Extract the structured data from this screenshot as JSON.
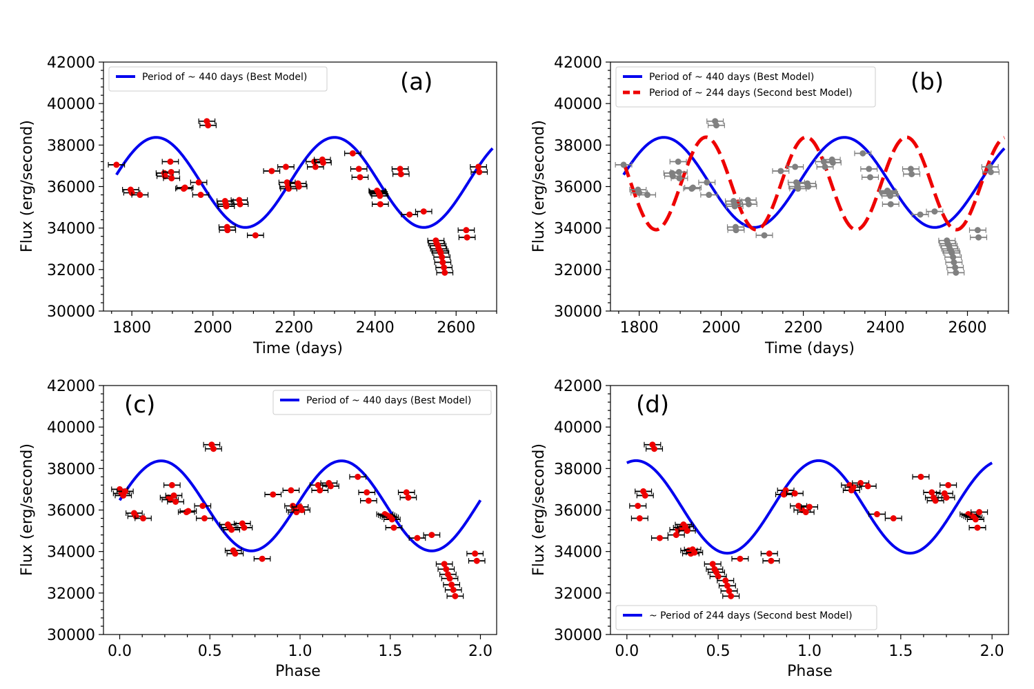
{
  "chart_data": [
    {
      "panel": "a",
      "tag": "(a)",
      "type": "scatter",
      "xlabel": "Time (days)",
      "ylabel": "Flux (erg/second)",
      "xlim": [
        1730,
        2700
      ],
      "ylim": [
        30000,
        42000
      ],
      "xticks": [
        1800,
        2000,
        2200,
        2400,
        2600
      ],
      "yticks": [
        30000,
        32000,
        34000,
        36000,
        38000,
        40000,
        42000
      ],
      "tick_labels_x": [
        "1800",
        "2000",
        "2200",
        "2400",
        "2600"
      ],
      "tick_labels_y": [
        "30000",
        "32000",
        "34000",
        "36000",
        "38000",
        "40000",
        "42000"
      ],
      "legend_position": "upper-left",
      "series": [
        {
          "name": "Period of ~ 440 days (Best Model)",
          "kind": "model",
          "color": "#0000ee",
          "dash": "solid",
          "mean": 36200,
          "amp": 2170,
          "period": 440,
          "peak_x": 1860,
          "x_range": [
            1762,
            2690
          ]
        },
        {
          "name": "data",
          "kind": "points",
          "color": "#ee0000",
          "err_color": "#000000",
          "xerr": 20,
          "x": [
            1762,
            1797,
            1800,
            1820,
            1880,
            1882,
            1895,
            1897,
            1898,
            1928,
            1931,
            1965,
            1970,
            1985,
            1988,
            2030,
            2032,
            2033,
            2035,
            2036,
            2065,
            2067,
            2105,
            2145,
            2180,
            2183,
            2185,
            2187,
            2210,
            2212,
            2250,
            2253,
            2270,
            2272,
            2345,
            2360,
            2363,
            2405,
            2407,
            2408,
            2410,
            2412,
            2413,
            2462,
            2464,
            2485,
            2520,
            2550,
            2552,
            2555,
            2557,
            2560,
            2562,
            2565,
            2567,
            2570,
            2572,
            2625,
            2627,
            2655,
            2657
          ],
          "y": [
            37050,
            35850,
            35700,
            35600,
            36650,
            36500,
            37200,
            36700,
            36400,
            35900,
            35950,
            36200,
            35600,
            39150,
            38950,
            35300,
            35150,
            35050,
            34050,
            33900,
            35350,
            35150,
            33650,
            36750,
            36950,
            36200,
            36000,
            35900,
            36150,
            36000,
            37200,
            36950,
            37300,
            37150,
            37600,
            36850,
            36450,
            35800,
            35750,
            35700,
            35650,
            35550,
            35150,
            36850,
            36600,
            34650,
            34800,
            33400,
            33250,
            33150,
            33000,
            32900,
            32800,
            32600,
            32350,
            32100,
            31850,
            33900,
            33550,
            36950,
            36700
          ]
        }
      ]
    },
    {
      "panel": "b",
      "tag": "(b)",
      "type": "scatter",
      "xlabel": "Time (days)",
      "ylabel": "Flux (erg/second)",
      "xlim": [
        1730,
        2700
      ],
      "ylim": [
        30000,
        42000
      ],
      "xticks": [
        1800,
        2000,
        2200,
        2400,
        2600
      ],
      "yticks": [
        30000,
        32000,
        34000,
        36000,
        38000,
        40000,
        42000
      ],
      "tick_labels_x": [
        "1800",
        "2000",
        "2200",
        "2400",
        "2600"
      ],
      "tick_labels_y": [
        "30000",
        "32000",
        "34000",
        "36000",
        "38000",
        "40000",
        "42000"
      ],
      "legend_position": "upper-left",
      "series": [
        {
          "name": "Period of ~ 440 days (Best Model)",
          "kind": "model",
          "color": "#0000ee",
          "dash": "solid",
          "mean": 36200,
          "amp": 2170,
          "period": 440,
          "peak_x": 1860,
          "x_range": [
            1762,
            2690
          ]
        },
        {
          "name": "Period of ~ 244 days (Second best Model)",
          "kind": "model",
          "color": "#ee0000",
          "dash": "dashed",
          "mean": 36150,
          "amp": 2230,
          "period": 244,
          "peak_x": 1963,
          "x_range": [
            1762,
            2690
          ]
        },
        {
          "name": "data",
          "kind": "points",
          "color": "#808080",
          "err_color": "#808080",
          "xerr": 20,
          "x": [
            1762,
            1797,
            1800,
            1820,
            1880,
            1882,
            1895,
            1897,
            1898,
            1928,
            1931,
            1965,
            1970,
            1985,
            1988,
            2030,
            2032,
            2033,
            2035,
            2036,
            2065,
            2067,
            2105,
            2145,
            2180,
            2183,
            2185,
            2187,
            2210,
            2212,
            2250,
            2253,
            2270,
            2272,
            2345,
            2360,
            2363,
            2405,
            2407,
            2408,
            2410,
            2412,
            2413,
            2462,
            2464,
            2485,
            2520,
            2550,
            2552,
            2555,
            2557,
            2560,
            2562,
            2565,
            2567,
            2570,
            2572,
            2625,
            2627,
            2655,
            2657
          ],
          "y": [
            37050,
            35850,
            35700,
            35600,
            36650,
            36500,
            37200,
            36700,
            36400,
            35900,
            35950,
            36200,
            35600,
            39150,
            38950,
            35300,
            35150,
            35050,
            34050,
            33900,
            35350,
            35150,
            33650,
            36750,
            36950,
            36200,
            36000,
            35900,
            36150,
            36000,
            37200,
            36950,
            37300,
            37150,
            37600,
            36850,
            36450,
            35800,
            35750,
            35700,
            35650,
            35550,
            35150,
            36850,
            36600,
            34650,
            34800,
            33400,
            33250,
            33150,
            33000,
            32900,
            32800,
            32600,
            32350,
            32100,
            31850,
            33900,
            33550,
            36950,
            36700
          ]
        }
      ]
    },
    {
      "panel": "c",
      "tag": "(c)",
      "type": "scatter",
      "xlabel": "Phase",
      "ylabel": "Flux (erg/second)",
      "xlim": [
        -0.09,
        2.09
      ],
      "ylim": [
        30000,
        42000
      ],
      "xticks": [
        0.0,
        0.5,
        1.0,
        1.5,
        2.0
      ],
      "yticks": [
        30000,
        32000,
        34000,
        36000,
        38000,
        40000,
        42000
      ],
      "tick_labels_x": [
        "0.0",
        "0.5",
        "1.0",
        "1.5",
        "2.0"
      ],
      "tick_labels_y": [
        "30000",
        "32000",
        "34000",
        "36000",
        "38000",
        "40000",
        "42000"
      ],
      "legend_position": "upper-right",
      "series": [
        {
          "name": "Period of ~ 440 days (Best Model)",
          "kind": "model",
          "color": "#0000ee",
          "dash": "solid",
          "mean": 36200,
          "amp": 2170,
          "period": 1,
          "peak_x": 0.23,
          "x_range": [
            0,
            2
          ]
        },
        {
          "name": "data",
          "kind": "points",
          "color": "#ee0000",
          "err_color": "#000000",
          "xerr": 0.045,
          "x": [
            0.0,
            0.01,
            0.02,
            0.03,
            0.08,
            0.09,
            0.13,
            0.27,
            0.28,
            0.29,
            0.3,
            0.31,
            0.37,
            0.38,
            0.46,
            0.47,
            0.51,
            0.52,
            0.6,
            0.61,
            0.62,
            0.63,
            0.64,
            0.68,
            0.69,
            0.79,
            0.85,
            0.95,
            0.96,
            0.97,
            0.98,
            1.0,
            1.01,
            1.1,
            1.11,
            1.16,
            1.17,
            1.32,
            1.37,
            1.38,
            1.47,
            1.48,
            1.49,
            1.5,
            1.51,
            1.52,
            1.59,
            1.6,
            1.65,
            1.73,
            1.8,
            1.81,
            1.82,
            1.83,
            1.84,
            1.85,
            1.86,
            1.97,
            1.98
          ],
          "y": [
            37000,
            36800,
            36700,
            36900,
            35850,
            35700,
            35600,
            36600,
            36500,
            37200,
            36700,
            36400,
            35900,
            35950,
            36200,
            35600,
            39150,
            38950,
            35300,
            35150,
            35050,
            34050,
            33900,
            35350,
            35150,
            33650,
            36750,
            36950,
            36200,
            36000,
            35900,
            36150,
            36000,
            37200,
            36950,
            37300,
            37150,
            37600,
            36850,
            36450,
            35800,
            35750,
            35700,
            35650,
            35550,
            35150,
            36850,
            36600,
            34650,
            34800,
            33400,
            33150,
            32900,
            32700,
            32400,
            32150,
            31850,
            33900,
            33550
          ]
        }
      ]
    },
    {
      "panel": "d",
      "tag": "(d)",
      "type": "scatter",
      "xlabel": "Phase",
      "ylabel": "Flux (erg/second)",
      "xlim": [
        -0.09,
        2.09
      ],
      "ylim": [
        30000,
        42000
      ],
      "xticks": [
        0.0,
        0.5,
        1.0,
        1.5,
        2.0
      ],
      "yticks": [
        30000,
        32000,
        34000,
        36000,
        38000,
        40000,
        42000
      ],
      "tick_labels_x": [
        "0.0",
        "0.5",
        "1.0",
        "1.5",
        "2.0"
      ],
      "tick_labels_y": [
        "30000",
        "32000",
        "34000",
        "36000",
        "38000",
        "40000",
        "42000"
      ],
      "legend_position": "lower-left",
      "series": [
        {
          "name": "~ Period of 244 days (Second best Model)",
          "kind": "model",
          "color": "#0000ee",
          "dash": "solid",
          "mean": 36150,
          "amp": 2230,
          "period": 1,
          "peak_x": 0.05,
          "x_range": [
            0,
            2
          ]
        },
        {
          "name": "data",
          "kind": "points",
          "color": "#ee0000",
          "err_color": "#000000",
          "xerr": 0.045,
          "x": [
            0.06,
            0.07,
            0.09,
            0.1,
            0.14,
            0.15,
            0.18,
            0.27,
            0.28,
            0.3,
            0.31,
            0.32,
            0.33,
            0.34,
            0.35,
            0.36,
            0.37,
            0.47,
            0.48,
            0.49,
            0.5,
            0.54,
            0.55,
            0.56,
            0.57,
            0.62,
            0.78,
            0.79,
            0.86,
            0.87,
            0.92,
            0.94,
            0.96,
            0.98,
            1.0,
            1.22,
            1.23,
            1.24,
            1.28,
            1.32,
            1.37,
            1.46,
            1.61,
            1.67,
            1.68,
            1.69,
            1.74,
            1.75,
            1.76,
            1.87,
            1.88,
            1.89,
            1.9,
            1.91,
            1.92,
            1.93
          ],
          "y": [
            36200,
            35600,
            36900,
            36700,
            39150,
            38950,
            34650,
            34800,
            35050,
            35150,
            35300,
            35200,
            35000,
            34050,
            33900,
            34100,
            33950,
            33400,
            33150,
            33000,
            32800,
            32600,
            32350,
            32100,
            31850,
            33650,
            33900,
            33550,
            36750,
            36950,
            36800,
            36200,
            36000,
            35900,
            36150,
            37200,
            36950,
            37100,
            37300,
            37150,
            35800,
            35600,
            37600,
            36850,
            36600,
            36450,
            36800,
            36600,
            37200,
            35800,
            35750,
            35700,
            35650,
            35550,
            35150,
            35900
          ]
        }
      ]
    }
  ]
}
